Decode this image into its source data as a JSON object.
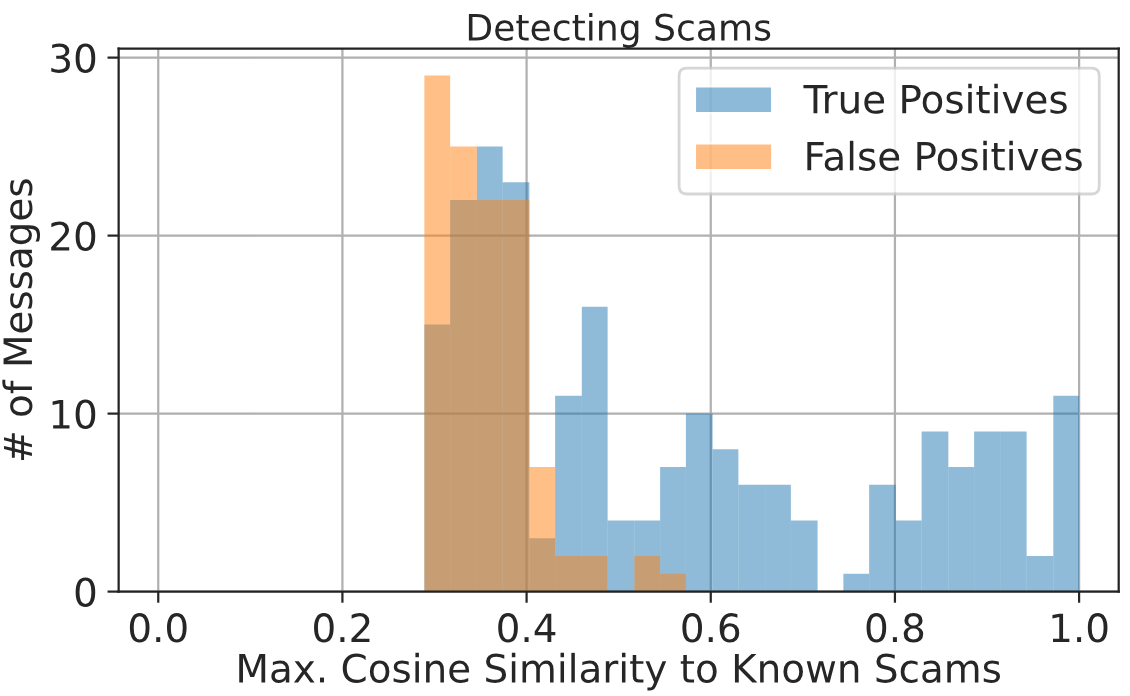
{
  "chart_data": {
    "type": "histogram",
    "title": "Detecting Scams",
    "xlabel": "Max. Cosine Similarity to Known Scams",
    "ylabel": "# of Messages",
    "bins": [
      0.289,
      0.317,
      0.346,
      0.374,
      0.403,
      0.431,
      0.46,
      0.488,
      0.517,
      0.545,
      0.573,
      0.602,
      0.63,
      0.659,
      0.687,
      0.716,
      0.744,
      0.772,
      0.801,
      0.829,
      0.858,
      0.886,
      0.915,
      0.943,
      0.972,
      1.0
    ],
    "series": [
      {
        "name": "True Positives",
        "color": "#1f77b4",
        "values": [
          15,
          22,
          25,
          23,
          3,
          11,
          16,
          4,
          4,
          7,
          10,
          8,
          6,
          6,
          4,
          0,
          1,
          6,
          4,
          9,
          7,
          9,
          9,
          2,
          11
        ]
      },
      {
        "name": "False Positives",
        "color": "#ff7f0e",
        "values": [
          29,
          25,
          22,
          22,
          7,
          2,
          2,
          0,
          2,
          1,
          0,
          0,
          0,
          0,
          0,
          0,
          0,
          0,
          0,
          0,
          0,
          0,
          0,
          0,
          0
        ]
      }
    ],
    "xlim": [
      -0.043,
      1.043
    ],
    "ylim": [
      0,
      30.5
    ],
    "xticks": [
      {
        "value": 0,
        "label": "0.0"
      },
      0.2,
      0.4,
      0.6,
      0.8,
      {
        "value": 1,
        "label": "1.0"
      }
    ],
    "yticks": [
      0,
      10,
      20,
      30
    ],
    "grid": true,
    "legend": "top right"
  }
}
